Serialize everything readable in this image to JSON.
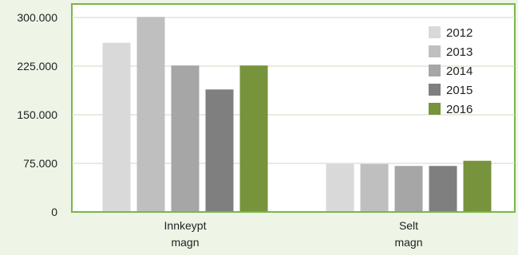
{
  "chart_data": {
    "type": "bar",
    "categories": [
      [
        "Innkeypt",
        "magn"
      ],
      [
        "Selt",
        "magn"
      ]
    ],
    "series": [
      {
        "name": "2012",
        "color": "#d9d9d9",
        "values": [
          261000,
          74000
        ]
      },
      {
        "name": "2013",
        "color": "#bfbfbf",
        "values": [
          301000,
          74000
        ]
      },
      {
        "name": "2014",
        "color": "#a6a6a6",
        "values": [
          226000,
          71000
        ]
      },
      {
        "name": "2015",
        "color": "#7f7f7f",
        "values": [
          189000,
          71000
        ]
      },
      {
        "name": "2016",
        "color": "#77933c",
        "values": [
          226000,
          79000
        ]
      }
    ],
    "yticks": [
      "0",
      "75.000",
      "150.000",
      "225.000",
      "300.000"
    ],
    "ytick_values": [
      0,
      75000,
      150000,
      225000,
      300000
    ],
    "ylim": [
      0,
      300000
    ],
    "grid": true,
    "legend_position": "top-right"
  },
  "style": {
    "plot_background": "#ffffff",
    "page_background": "#eef4e6",
    "frame_color": "#7ab648",
    "grid_color": "#cfd8c4"
  }
}
